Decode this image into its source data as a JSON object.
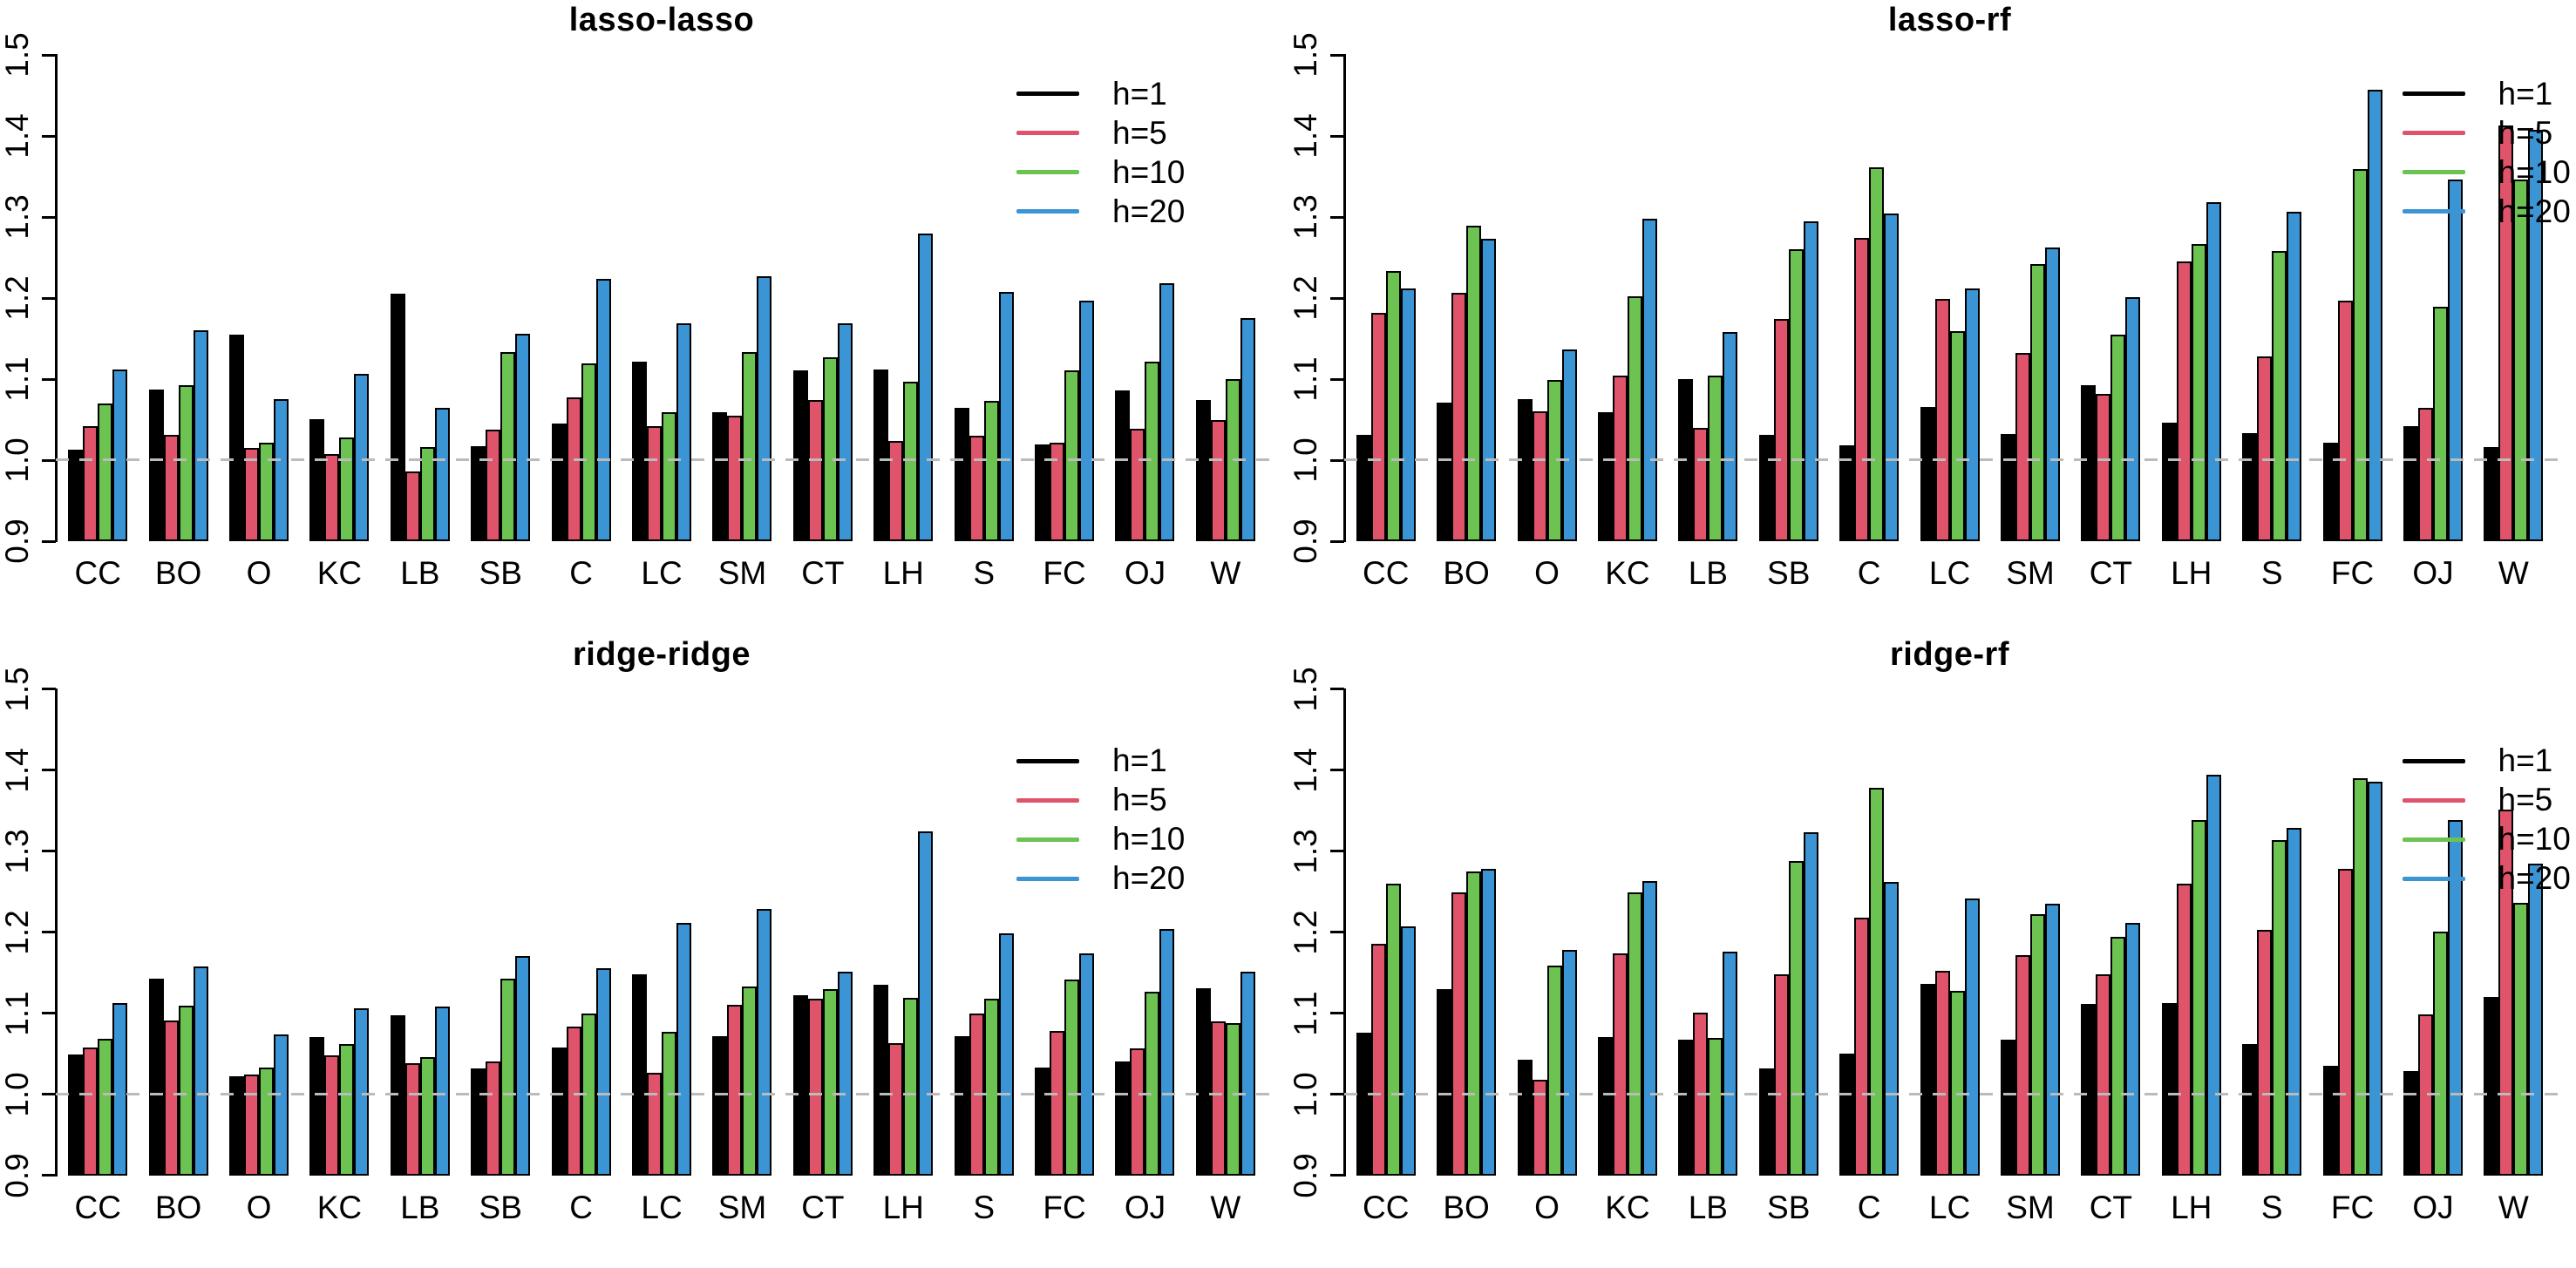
{
  "figure": {
    "background": "#ffffff",
    "axis_color": "#000000",
    "ref_line_color": "#bbbbbb",
    "palette": {
      "h1": "#000000",
      "h5": "#df536b",
      "h10": "#6cc351",
      "h20": "#3b95d5"
    },
    "y_axis": {
      "min": 0.9,
      "max": 1.5,
      "ticks": [
        "0.9",
        "1.0",
        "1.1",
        "1.2",
        "1.3",
        "1.4",
        "1.5"
      ]
    },
    "legend_labels": [
      "h=1",
      "h=5",
      "h=10",
      "h=20"
    ]
  },
  "chart_data": [
    {
      "type": "bar",
      "title": "lasso-lasso",
      "xlabel": "",
      "ylabel": "",
      "ylim": [
        0.9,
        1.5
      ],
      "ref_line": 1.0,
      "grid": false,
      "legend_position": "top-right-inset",
      "categories": [
        "CC",
        "BO",
        "O",
        "KC",
        "LB",
        "SB",
        "C",
        "LC",
        "SM",
        "CT",
        "LH",
        "S",
        "FC",
        "OJ",
        "W"
      ],
      "series": [
        {
          "name": "h=1",
          "color": "#000000",
          "values": [
            1.013,
            1.087,
            1.155,
            1.051,
            1.205,
            1.017,
            1.045,
            1.122,
            1.059,
            1.111,
            1.112,
            1.064,
            1.019,
            1.086,
            1.074
          ]
        },
        {
          "name": "h=5",
          "color": "#df536b",
          "values": [
            1.042,
            1.031,
            1.015,
            1.008,
            0.986,
            1.038,
            1.077,
            1.042,
            1.055,
            1.074,
            1.024,
            1.03,
            1.021,
            1.039,
            1.05
          ]
        },
        {
          "name": "h=10",
          "color": "#6cc351",
          "values": [
            1.07,
            1.093,
            1.022,
            1.028,
            1.016,
            1.133,
            1.119,
            1.059,
            1.133,
            1.127,
            1.097,
            1.073,
            1.111,
            1.121,
            1.1
          ]
        },
        {
          "name": "h=20",
          "color": "#3b95d5",
          "values": [
            1.112,
            1.16,
            1.075,
            1.107,
            1.065,
            1.156,
            1.224,
            1.169,
            1.227,
            1.169,
            1.28,
            1.208,
            1.197,
            1.218,
            1.175
          ]
        }
      ]
    },
    {
      "type": "bar",
      "title": "lasso-rf",
      "xlabel": "",
      "ylabel": "",
      "ylim": [
        0.9,
        1.5
      ],
      "ref_line": 1.0,
      "grid": false,
      "legend_position": "top-right-flush",
      "categories": [
        "CC",
        "BO",
        "O",
        "KC",
        "LB",
        "SB",
        "C",
        "LC",
        "SM",
        "CT",
        "LH",
        "S",
        "FC",
        "OJ",
        "W"
      ],
      "series": [
        {
          "name": "h=1",
          "color": "#000000",
          "values": [
            1.031,
            1.071,
            1.075,
            1.059,
            1.1,
            1.031,
            1.018,
            1.066,
            1.032,
            1.092,
            1.046,
            1.033,
            1.021,
            1.042,
            1.016
          ]
        },
        {
          "name": "h=5",
          "color": "#df536b",
          "values": [
            1.182,
            1.207,
            1.06,
            1.104,
            1.04,
            1.174,
            1.274,
            1.199,
            1.132,
            1.082,
            1.245,
            1.128,
            1.197,
            1.065,
            1.413
          ]
        },
        {
          "name": "h=10",
          "color": "#6cc351",
          "values": [
            1.233,
            1.289,
            1.099,
            1.202,
            1.104,
            1.26,
            1.361,
            1.159,
            1.242,
            1.155,
            1.267,
            1.258,
            1.359,
            1.189,
            1.346
          ]
        },
        {
          "name": "h=20",
          "color": "#3b95d5",
          "values": [
            1.212,
            1.273,
            1.137,
            1.298,
            1.158,
            1.295,
            1.304,
            1.212,
            1.262,
            1.201,
            1.318,
            1.307,
            1.457,
            1.346,
            1.408
          ]
        }
      ]
    },
    {
      "type": "bar",
      "title": "ridge-ridge",
      "xlabel": "",
      "ylabel": "",
      "ylim": [
        0.9,
        1.5
      ],
      "ref_line": 1.0,
      "grid": false,
      "legend_position": "top-right-inset",
      "categories": [
        "CC",
        "BO",
        "O",
        "KC",
        "LB",
        "SB",
        "C",
        "LC",
        "SM",
        "CT",
        "LH",
        "S",
        "FC",
        "OJ",
        "W"
      ],
      "series": [
        {
          "name": "h=1",
          "color": "#000000",
          "values": [
            1.049,
            1.142,
            1.022,
            1.07,
            1.097,
            1.032,
            1.058,
            1.148,
            1.072,
            1.122,
            1.135,
            1.072,
            1.033,
            1.04,
            1.131
          ]
        },
        {
          "name": "h=5",
          "color": "#df536b",
          "values": [
            1.058,
            1.091,
            1.024,
            1.048,
            1.038,
            1.04,
            1.083,
            1.026,
            1.11,
            1.118,
            1.063,
            1.099,
            1.078,
            1.056,
            1.09
          ]
        },
        {
          "name": "h=10",
          "color": "#6cc351",
          "values": [
            1.068,
            1.109,
            1.033,
            1.062,
            1.046,
            1.142,
            1.099,
            1.077,
            1.133,
            1.13,
            1.119,
            1.118,
            1.141,
            1.126,
            1.088
          ]
        },
        {
          "name": "h=20",
          "color": "#3b95d5",
          "values": [
            1.112,
            1.158,
            1.074,
            1.106,
            1.108,
            1.17,
            1.155,
            1.211,
            1.229,
            1.151,
            1.324,
            1.198,
            1.174,
            1.204,
            1.151
          ]
        }
      ]
    },
    {
      "type": "bar",
      "title": "ridge-rf",
      "xlabel": "",
      "ylabel": "",
      "ylim": [
        0.9,
        1.5
      ],
      "ref_line": 1.0,
      "grid": false,
      "legend_position": "top-right-flush",
      "categories": [
        "CC",
        "BO",
        "O",
        "KC",
        "LB",
        "SB",
        "C",
        "LC",
        "SM",
        "CT",
        "LH",
        "S",
        "FC",
        "OJ",
        "W"
      ],
      "series": [
        {
          "name": "h=1",
          "color": "#000000",
          "values": [
            1.076,
            1.13,
            1.043,
            1.07,
            1.067,
            1.032,
            1.05,
            1.136,
            1.067,
            1.111,
            1.112,
            1.062,
            1.035,
            1.029,
            1.12
          ]
        },
        {
          "name": "h=5",
          "color": "#df536b",
          "values": [
            1.185,
            1.249,
            1.018,
            1.174,
            1.101,
            1.148,
            1.218,
            1.152,
            1.171,
            1.148,
            1.26,
            1.203,
            1.278,
            1.098,
            1.351
          ]
        },
        {
          "name": "h=10",
          "color": "#6cc351",
          "values": [
            1.26,
            1.275,
            1.159,
            1.249,
            1.069,
            1.288,
            1.378,
            1.127,
            1.222,
            1.194,
            1.338,
            1.313,
            1.39,
            1.201,
            1.236
          ]
        },
        {
          "name": "h=20",
          "color": "#3b95d5",
          "values": [
            1.207,
            1.278,
            1.178,
            1.263,
            1.176,
            1.323,
            1.262,
            1.241,
            1.235,
            1.211,
            1.394,
            1.328,
            1.385,
            1.338,
            1.284
          ]
        }
      ]
    }
  ]
}
